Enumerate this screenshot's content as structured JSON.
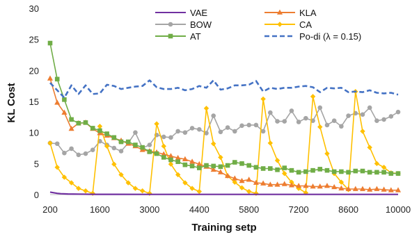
{
  "chart_data": {
    "type": "line",
    "title": "",
    "xlabel": "Training setp",
    "ylabel": "KL Cost",
    "xlim": [
      200,
      10000
    ],
    "ylim": [
      0,
      30
    ],
    "x_ticks": [
      "200",
      "1600",
      "3000",
      "4400",
      "5800",
      "7200",
      "8600",
      "10000"
    ],
    "y_ticks": [
      "0",
      "5",
      "10",
      "15",
      "20",
      "25",
      "30"
    ],
    "grid": false,
    "legend_position": "top-right",
    "series": [
      {
        "name": "VAE",
        "color": "#7030a0",
        "dashed": false,
        "marker": "none",
        "x": [
          200,
          300,
          400,
          500,
          700,
          1000,
          1500,
          2000,
          3000,
          4000,
          5000,
          6000,
          7000,
          8000,
          9000,
          10000
        ],
        "y": [
          0.4,
          0.3,
          0.2,
          0.15,
          0.1,
          0.08,
          0.05,
          0.04,
          0.03,
          0.03,
          0.03,
          0.03,
          0.03,
          0.03,
          0.03,
          0.03
        ]
      },
      {
        "name": "KLA",
        "color": "#ed7d31",
        "dashed": false,
        "marker": "triangle",
        "x": [
          200,
          400,
          600,
          800,
          1000,
          1200,
          1400,
          1600,
          1800,
          2000,
          2200,
          2400,
          2600,
          2800,
          3000,
          3200,
          3400,
          3600,
          3800,
          4000,
          4200,
          4400,
          4600,
          4800,
          5000,
          5200,
          5400,
          5600,
          5800,
          6000,
          6200,
          6400,
          6600,
          6800,
          7000,
          7200,
          7400,
          7600,
          7800,
          8000,
          8200,
          8400,
          8600,
          8800,
          9000,
          9200,
          9400,
          9600,
          9800,
          10000
        ],
        "y": [
          18.7,
          14.8,
          13.2,
          10.6,
          11.5,
          11.6,
          10.6,
          9.9,
          9.5,
          9.1,
          8.7,
          8.2,
          7.8,
          7.2,
          7.0,
          6.8,
          6.5,
          6.2,
          5.9,
          5.7,
          5.3,
          4.9,
          4.5,
          4.0,
          3.6,
          3.0,
          2.6,
          2.2,
          2.4,
          1.9,
          1.8,
          1.6,
          1.6,
          1.7,
          1.5,
          1.4,
          1.4,
          1.3,
          1.3,
          1.4,
          1.2,
          1.0,
          0.9,
          0.9,
          0.9,
          0.8,
          0.9,
          0.8,
          0.7,
          0.7
        ]
      },
      {
        "name": "BOW",
        "color": "#a5a5a5",
        "dashed": false,
        "marker": "circle",
        "x": [
          200,
          400,
          600,
          800,
          1000,
          1200,
          1400,
          1600,
          1800,
          2000,
          2200,
          2400,
          2600,
          2800,
          3000,
          3200,
          3400,
          3600,
          3800,
          4000,
          4200,
          4400,
          4600,
          4800,
          5000,
          5200,
          5400,
          5600,
          5800,
          6000,
          6200,
          6400,
          6600,
          6800,
          7000,
          7200,
          7400,
          7600,
          7800,
          8000,
          8200,
          8400,
          8600,
          8800,
          9000,
          9200,
          9400,
          9600,
          9800,
          10000
        ],
        "y": [
          8.3,
          8.2,
          6.7,
          7.4,
          6.4,
          6.6,
          7.2,
          8.6,
          8.0,
          7.5,
          7.0,
          8.3,
          10.0,
          7.5,
          8.0,
          9.6,
          9.3,
          9.2,
          10.2,
          10.0,
          10.7,
          10.5,
          9.9,
          12.7,
          10.1,
          10.8,
          10.2,
          11.1,
          11.2,
          11.2,
          10.2,
          13.2,
          11.8,
          11.8,
          13.5,
          11.7,
          12.3,
          11.9,
          14.0,
          11.2,
          11.9,
          11.0,
          12.7,
          13.1,
          12.9,
          14.0,
          11.9,
          12.1,
          12.6,
          13.3
        ]
      },
      {
        "name": "CA",
        "color": "#ffc000",
        "dashed": false,
        "marker": "diamond",
        "x": [
          200,
          400,
          600,
          800,
          1000,
          1200,
          1400,
          1600,
          1800,
          2000,
          2200,
          2400,
          2600,
          2800,
          3000,
          3200,
          3400,
          3600,
          3800,
          4000,
          4200,
          4400,
          4600,
          4800,
          5000,
          5200,
          5400,
          5600,
          5800,
          6000,
          6200,
          6400,
          6600,
          6800,
          7000,
          7200,
          7400,
          7600,
          7800,
          8000,
          8200,
          8400,
          8600,
          8800,
          9000,
          9200,
          9400,
          9600,
          9800,
          10000
        ],
        "y": [
          8.3,
          4.4,
          2.8,
          1.9,
          1.0,
          0.6,
          0.2,
          11.0,
          7.8,
          4.9,
          3.2,
          1.9,
          1.0,
          0.6,
          0.2,
          11.4,
          7.8,
          4.9,
          3.2,
          1.9,
          1.0,
          0.5,
          13.9,
          8.2,
          6.0,
          3.0,
          2.0,
          1.1,
          0.5,
          0.2,
          15.4,
          8.3,
          5.5,
          3.4,
          2.0,
          1.0,
          0.3,
          15.8,
          10.9,
          6.6,
          3.4,
          2.0,
          0.8,
          16.6,
          10.2,
          7.6,
          5.0,
          4.4,
          3.5,
          3.4
        ]
      },
      {
        "name": "AT",
        "color": "#70ad47",
        "dashed": false,
        "marker": "square",
        "x": [
          200,
          400,
          600,
          800,
          1000,
          1200,
          1400,
          1600,
          1800,
          2000,
          2200,
          2400,
          2600,
          2800,
          3000,
          3200,
          3400,
          3600,
          3800,
          4000,
          4200,
          4400,
          4600,
          4800,
          5000,
          5200,
          5400,
          5600,
          5800,
          6000,
          6200,
          6400,
          6600,
          6800,
          7000,
          7200,
          7400,
          7600,
          7800,
          8000,
          8200,
          8400,
          8600,
          8800,
          9000,
          9200,
          9400,
          9600,
          9800,
          10000
        ],
        "y": [
          24.4,
          18.6,
          15.3,
          12.1,
          11.5,
          11.6,
          10.7,
          10.3,
          9.8,
          9.2,
          8.5,
          8.5,
          8.0,
          7.6,
          6.9,
          6.6,
          6.0,
          5.6,
          5.3,
          4.8,
          4.6,
          4.3,
          4.7,
          4.6,
          4.5,
          4.7,
          5.2,
          5.0,
          4.7,
          4.4,
          4.2,
          4.2,
          4.0,
          4.3,
          3.9,
          3.6,
          3.7,
          3.9,
          4.1,
          3.9,
          3.7,
          3.7,
          3.6,
          3.8,
          3.8,
          3.6,
          3.6,
          3.6,
          3.4,
          3.4
        ]
      },
      {
        "name": "Po-di (λ = 0.15)",
        "color": "#4472c4",
        "dashed": true,
        "marker": "none",
        "x": [
          200,
          400,
          600,
          800,
          1000,
          1200,
          1400,
          1600,
          1800,
          2000,
          2200,
          2400,
          2600,
          2800,
          3000,
          3200,
          3400,
          3600,
          3800,
          4000,
          4200,
          4400,
          4600,
          4800,
          5000,
          5200,
          5400,
          5600,
          5800,
          6000,
          6200,
          6400,
          6600,
          6800,
          7000,
          7200,
          7400,
          7600,
          7800,
          8000,
          8200,
          8400,
          8600,
          8800,
          9000,
          9200,
          9400,
          9600,
          9800,
          10000
        ],
        "y": [
          18.0,
          16.8,
          15.6,
          17.6,
          16.2,
          17.6,
          16.2,
          16.3,
          17.7,
          17.5,
          17.0,
          17.2,
          17.4,
          17.5,
          18.4,
          17.3,
          17.0,
          17.0,
          17.2,
          16.8,
          17.0,
          17.5,
          17.2,
          18.4,
          16.9,
          17.1,
          17.6,
          17.6,
          17.7,
          18.3,
          16.6,
          17.2,
          17.0,
          17.2,
          17.2,
          17.4,
          17.5,
          17.3,
          16.5,
          17.2,
          17.1,
          17.2,
          16.5,
          16.6,
          16.5,
          16.8,
          16.4,
          16.3,
          16.4,
          16.1
        ]
      }
    ]
  }
}
